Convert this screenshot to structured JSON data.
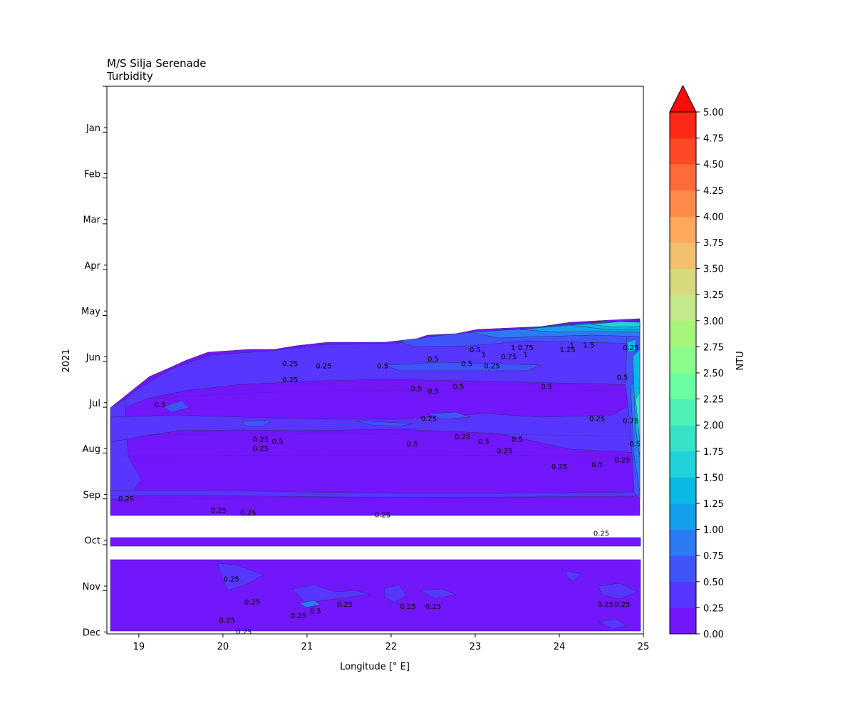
{
  "chart_data": {
    "type": "heatmap",
    "title": "M/S Silja Serenade",
    "subtitle": "Turbidity",
    "xlabel": "Longitude [° E]",
    "ylabel": "2021",
    "colorbar_label": "NTU",
    "x_ticks": [
      19,
      20,
      21,
      22,
      23,
      24,
      25
    ],
    "xlim": [
      18.62,
      25
    ],
    "y_ticks": [
      "Jan",
      "Feb",
      "Mar",
      "Apr",
      "May",
      "Jun",
      "Jul",
      "Aug",
      "Sep",
      "Oct",
      "Nov",
      "Dec"
    ],
    "colorbar_ticks": [
      "0.00",
      "0.25",
      "0.50",
      "0.75",
      "1.00",
      "1.25",
      "1.50",
      "1.75",
      "2.00",
      "2.25",
      "2.50",
      "2.75",
      "3.00",
      "3.25",
      "3.50",
      "3.75",
      "4.00",
      "4.25",
      "4.50",
      "4.75",
      "5.00"
    ],
    "colorbar_levels": [
      0,
      0.25,
      0.5,
      0.75,
      1,
      1.25,
      1.5,
      1.75,
      2,
      2.25,
      2.5,
      2.75,
      3,
      3.25,
      3.5,
      3.75,
      4,
      4.25,
      4.5,
      4.75,
      5
    ],
    "colorbar_extend": "max",
    "colors": [
      "#7216fc",
      "#5736fd",
      "#3f55fa",
      "#2d7af4",
      "#13a0ec",
      "#07b9e4",
      "#20d2d9",
      "#38e2c9",
      "#4ef2b6",
      "#6afda1",
      "#8afd8b",
      "#a5f67a",
      "#c3e98a",
      "#d8d87c",
      "#f0c06c",
      "#fda85b",
      "#fd8a48",
      "#fe6b38",
      "#fe4927",
      "#fd2815",
      "#fa0c08"
    ],
    "contour_labels": [
      {
        "text": "0.25",
        "lon": 20.8,
        "month": 5.2
      },
      {
        "text": "0.25",
        "lon": 21.2,
        "month": 5.25
      },
      {
        "text": "0.5",
        "lon": 21.9,
        "month": 5.25
      },
      {
        "text": "0.5",
        "lon": 22.5,
        "month": 5.1
      },
      {
        "text": "0.5",
        "lon": 23.0,
        "month": 4.9
      },
      {
        "text": "1",
        "lon": 23.1,
        "month": 5.0
      },
      {
        "text": "1",
        "lon": 23.45,
        "month": 4.85
      },
      {
        "text": "0.75",
        "lon": 23.6,
        "month": 4.85
      },
      {
        "text": "0.75",
        "lon": 23.4,
        "month": 5.05
      },
      {
        "text": "1",
        "lon": 23.6,
        "month": 5.0
      },
      {
        "text": "1",
        "lon": 24.15,
        "month": 4.8
      },
      {
        "text": "1.25",
        "lon": 24.1,
        "month": 4.9
      },
      {
        "text": "1.5",
        "lon": 24.35,
        "month": 4.8
      },
      {
        "text": "0.25",
        "lon": 24.85,
        "month": 4.85
      },
      {
        "text": "0.5",
        "lon": 22.9,
        "month": 5.2
      },
      {
        "text": "0.25",
        "lon": 23.2,
        "month": 5.25
      },
      {
        "text": "0.25",
        "lon": 20.8,
        "month": 5.55
      },
      {
        "text": "0.5",
        "lon": 22.3,
        "month": 5.75
      },
      {
        "text": "0.5",
        "lon": 22.5,
        "month": 5.8
      },
      {
        "text": "0.5",
        "lon": 22.8,
        "month": 5.7
      },
      {
        "text": "0.5",
        "lon": 23.85,
        "month": 5.7
      },
      {
        "text": "0.5",
        "lon": 19.25,
        "month": 6.1
      },
      {
        "text": "0.25",
        "lon": 22.45,
        "month": 6.4
      },
      {
        "text": "0.25",
        "lon": 24.45,
        "month": 6.4
      },
      {
        "text": "0.75",
        "lon": 24.85,
        "month": 6.45
      },
      {
        "text": "0.5",
        "lon": 24.75,
        "month": 5.5
      },
      {
        "text": "0.25",
        "lon": 20.45,
        "month": 6.85
      },
      {
        "text": "0.5",
        "lon": 20.65,
        "month": 6.9
      },
      {
        "text": "0.25",
        "lon": 20.45,
        "month": 7.05
      },
      {
        "text": "0.5",
        "lon": 22.25,
        "month": 6.95
      },
      {
        "text": "0.25",
        "lon": 22.85,
        "month": 6.8
      },
      {
        "text": "0.5",
        "lon": 23.1,
        "month": 6.9
      },
      {
        "text": "0.5",
        "lon": 23.5,
        "month": 6.85
      },
      {
        "text": "0.25",
        "lon": 23.35,
        "month": 7.1
      },
      {
        "text": "0.25",
        "lon": 24.0,
        "month": 7.45
      },
      {
        "text": "0.5",
        "lon": 24.45,
        "month": 7.4
      },
      {
        "text": "0.5",
        "lon": 24.9,
        "month": 6.95
      },
      {
        "text": "0.25",
        "lon": 24.75,
        "month": 7.3
      },
      {
        "text": "0.25",
        "lon": 18.85,
        "month": 8.15
      },
      {
        "text": "0.25",
        "lon": 19.95,
        "month": 8.4
      },
      {
        "text": "0.25",
        "lon": 20.3,
        "month": 8.45
      },
      {
        "text": "0.25",
        "lon": 21.9,
        "month": 8.5
      },
      {
        "text": "0.25",
        "lon": 24.5,
        "month": 8.9
      },
      {
        "text": "0.25",
        "lon": 20.1,
        "month": 9.9
      },
      {
        "text": "0.25",
        "lon": 20.35,
        "month": 10.4
      },
      {
        "text": "0.5",
        "lon": 21.1,
        "month": 10.6
      },
      {
        "text": "0.25",
        "lon": 21.45,
        "month": 10.45
      },
      {
        "text": "0.25",
        "lon": 22.2,
        "month": 10.5
      },
      {
        "text": "0.25",
        "lon": 22.5,
        "month": 10.5
      },
      {
        "text": "0.25",
        "lon": 20.9,
        "month": 10.7
      },
      {
        "text": "0.25",
        "lon": 20.05,
        "month": 10.8
      },
      {
        "text": "0.25",
        "lon": 20.25,
        "month": 11.05
      },
      {
        "text": "0.25",
        "lon": 24.55,
        "month": 10.45
      },
      {
        "text": "0.25",
        "lon": 24.75,
        "month": 10.45
      }
    ]
  }
}
